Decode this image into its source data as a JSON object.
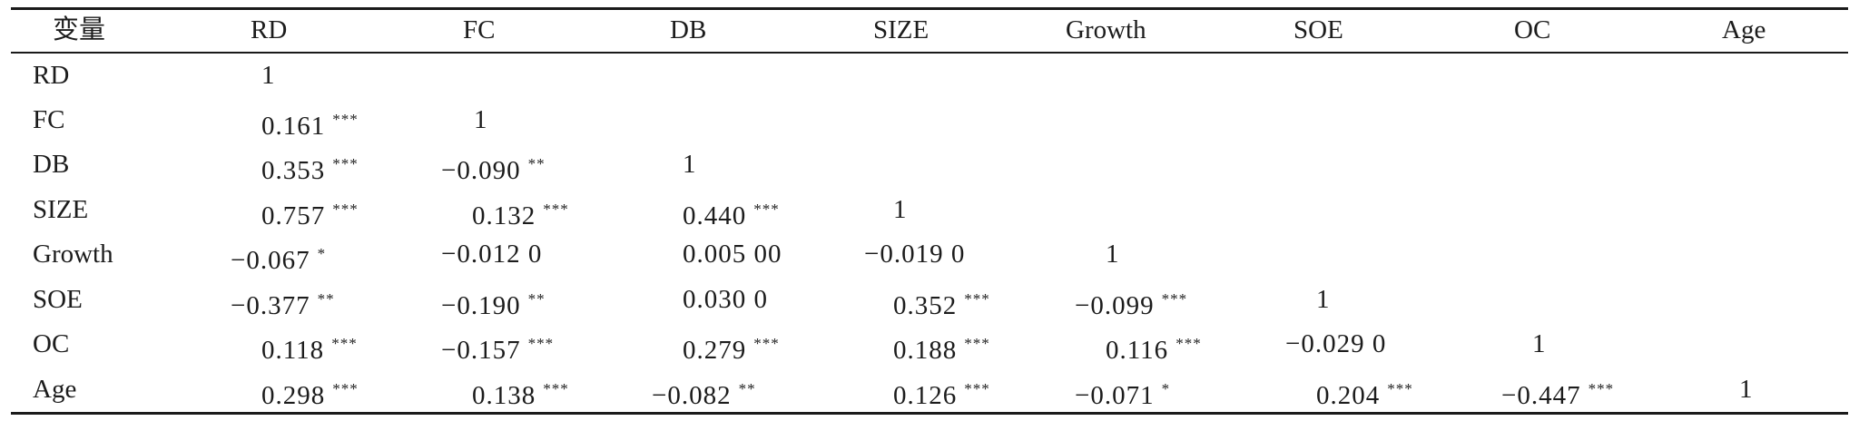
{
  "table": {
    "corner_label": "变量",
    "headers": [
      "RD",
      "FC",
      "DB",
      "SIZE",
      "Growth",
      "SOE",
      "OC",
      "Age"
    ],
    "rows": [
      {
        "label": "RD",
        "cells": [
          {
            "v": "1",
            "s": ""
          }
        ]
      },
      {
        "label": "FC",
        "cells": [
          {
            "v": "0.161",
            "s": "***"
          },
          {
            "v": "1",
            "s": ""
          }
        ]
      },
      {
        "label": "DB",
        "cells": [
          {
            "v": "0.353",
            "s": "***"
          },
          {
            "v": "−0.090",
            "s": "**"
          },
          {
            "v": "1",
            "s": ""
          }
        ]
      },
      {
        "label": "SIZE",
        "cells": [
          {
            "v": "0.757",
            "s": "***"
          },
          {
            "v": "0.132",
            "s": "***"
          },
          {
            "v": "0.440",
            "s": "***"
          },
          {
            "v": "1",
            "s": ""
          }
        ]
      },
      {
        "label": "Growth",
        "cells": [
          {
            "v": "−0.067",
            "s": "*"
          },
          {
            "v": "−0.012 0",
            "s": ""
          },
          {
            "v": "0.005 00",
            "s": ""
          },
          {
            "v": "−0.019 0",
            "s": ""
          },
          {
            "v": "1",
            "s": ""
          }
        ]
      },
      {
        "label": "SOE",
        "cells": [
          {
            "v": "−0.377",
            "s": "**"
          },
          {
            "v": "−0.190",
            "s": "**"
          },
          {
            "v": "0.030 0",
            "s": ""
          },
          {
            "v": "0.352",
            "s": "***"
          },
          {
            "v": "−0.099",
            "s": "***"
          },
          {
            "v": "1",
            "s": ""
          }
        ]
      },
      {
        "label": "OC",
        "cells": [
          {
            "v": "0.118",
            "s": "***"
          },
          {
            "v": "−0.157",
            "s": "***"
          },
          {
            "v": "0.279",
            "s": "***"
          },
          {
            "v": "0.188",
            "s": "***"
          },
          {
            "v": "0.116",
            "s": "***"
          },
          {
            "v": "−0.029 0",
            "s": ""
          },
          {
            "v": "1",
            "s": ""
          }
        ]
      },
      {
        "label": "Age",
        "cells": [
          {
            "v": "0.298",
            "s": "***"
          },
          {
            "v": "0.138",
            "s": "***"
          },
          {
            "v": "−0.082",
            "s": "**"
          },
          {
            "v": "0.126",
            "s": "***"
          },
          {
            "v": "−0.071",
            "s": "*"
          },
          {
            "v": "0.204",
            "s": "***"
          },
          {
            "v": "−0.447",
            "s": "***"
          },
          {
            "v": "1",
            "s": ""
          }
        ]
      }
    ]
  }
}
